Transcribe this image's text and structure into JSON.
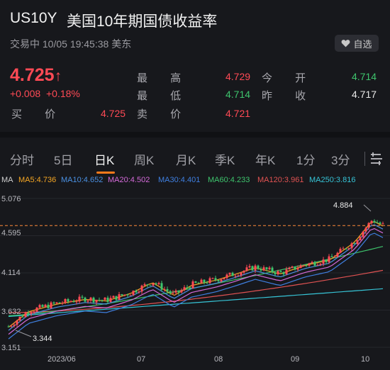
{
  "header": {
    "code": "US10Y",
    "name": "美国10年期国债收益率"
  },
  "status": "交易中 10/05 19:45:38 美东",
  "fav": {
    "icon": "heart-icon",
    "label": "自选"
  },
  "quote": {
    "price": "4.725",
    "arrow": "↑",
    "change": "+0.008",
    "change_pct": "+0.18%",
    "bid_label": "买 价",
    "bid": "4.725",
    "high_label": "最 高",
    "high": "4.729",
    "low_label": "最 低",
    "low": "4.714",
    "ask_label": "卖 价",
    "ask": "4.721",
    "open_label": "今 开",
    "open": "4.714",
    "prev_label": "昨 收",
    "prev": "4.717"
  },
  "tabs": [
    "分时",
    "5日",
    "日K",
    "周K",
    "月K",
    "季K",
    "年K",
    "1分",
    "3分"
  ],
  "active_tab": "日K",
  "more_icon": "menu-icon",
  "ma": {
    "label": "MA",
    "items": [
      {
        "text": "MA5:4.736",
        "color": "#f5a623"
      },
      {
        "text": "MA10:4.652",
        "color": "#4a90e2"
      },
      {
        "text": "MA20:4.502",
        "color": "#d36ad8"
      },
      {
        "text": "MA30:4.401",
        "color": "#3f7fe0"
      },
      {
        "text": "MA60:4.233",
        "color": "#3ec46d"
      },
      {
        "text": "MA120:3.961",
        "color": "#e05252"
      },
      {
        "text": "MA250:3.816",
        "color": "#36c4d6"
      }
    ]
  },
  "chart_data": {
    "type": "candlestick",
    "y_ticks": [
      "5.076",
      "4.595",
      "4.114",
      "3.632",
      "3.151"
    ],
    "x_ticks": [
      "2023/06",
      "07",
      "08",
      "09",
      "10"
    ],
    "ylim": [
      3.151,
      5.076
    ],
    "max_label": "4.884",
    "min_label": "3.344",
    "current_line": 4.725,
    "colors": {
      "up": "#ff4a55",
      "down": "#3ec46d"
    }
  }
}
